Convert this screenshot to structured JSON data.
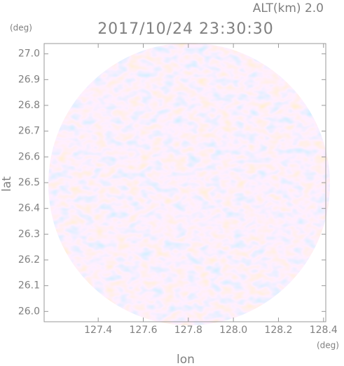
{
  "chart_data": {
    "type": "radar-ppi",
    "title": "2017/10/24 23:30:30",
    "subtitle": "ALT(km) 2.0",
    "y_unit": "(deg)",
    "x_unit": "(deg)",
    "xlabel": "lon",
    "ylabel": "lat",
    "xlim": [
      127.16,
      128.41
    ],
    "ylim": [
      25.96,
      27.04
    ],
    "xticks": [
      127.4,
      127.6,
      127.8,
      {
        "value": 128.0,
        "label": "128.0"
      },
      128.2,
      128.4
    ],
    "yticks": [
      {
        "value": 26.0,
        "label": "26.0"
      },
      26.1,
      26.2,
      26.3,
      26.4,
      26.5,
      26.6,
      26.7,
      26.8,
      26.9,
      {
        "value": 27.0,
        "label": "27.0"
      }
    ]
  }
}
